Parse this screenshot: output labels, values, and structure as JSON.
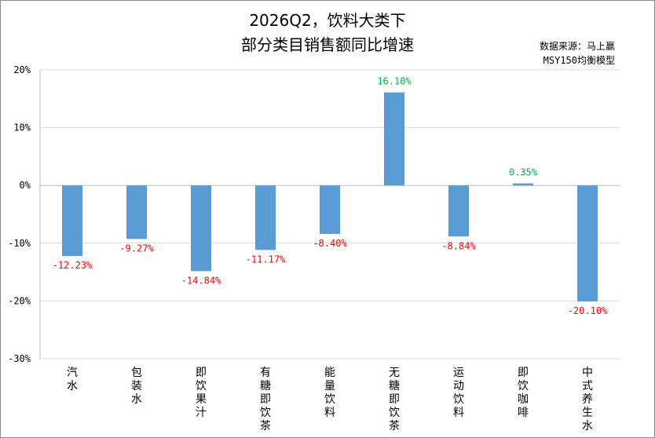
{
  "title": {
    "line1": "2026Q2，饮料大类下",
    "line2": "部分类目销售额同比增速"
  },
  "source": {
    "line1": "数据来源：马上赢",
    "line2": "MSY150均衡模型"
  },
  "colors": {
    "bar": "#5b9bd5",
    "negative_label": "#ff0000",
    "positive_label": "#00b050",
    "grid": "#d9d9d9",
    "axis": "#bfbfbf"
  },
  "chart_data": {
    "type": "bar",
    "title": "2026Q2，饮料大类下部分类目销售额同比增速",
    "xlabel": "",
    "ylabel": "",
    "ylim": [
      -30,
      20
    ],
    "yticks": [
      -30,
      -20,
      -10,
      0,
      10,
      20
    ],
    "ytick_labels": [
      "-30%",
      "-20%",
      "-10%",
      "0%",
      "10%",
      "20%"
    ],
    "grid": true,
    "legend": "none",
    "categories": [
      "汽水",
      "包装水",
      "即饮果汁",
      "有糖即饮茶",
      "能量饮料",
      "无糖即饮茶",
      "运动饮料",
      "即饮咖啡",
      "中式养生水"
    ],
    "values": [
      -12.23,
      -9.27,
      -14.84,
      -11.17,
      -8.4,
      16.1,
      -8.84,
      0.35,
      -20.1
    ],
    "value_labels": [
      "-12.23%",
      "-9.27%",
      "-14.84%",
      "-11.17%",
      "-8.40%",
      "16.10%",
      "-8.84%",
      "0.35%",
      "-20.10%"
    ]
  }
}
